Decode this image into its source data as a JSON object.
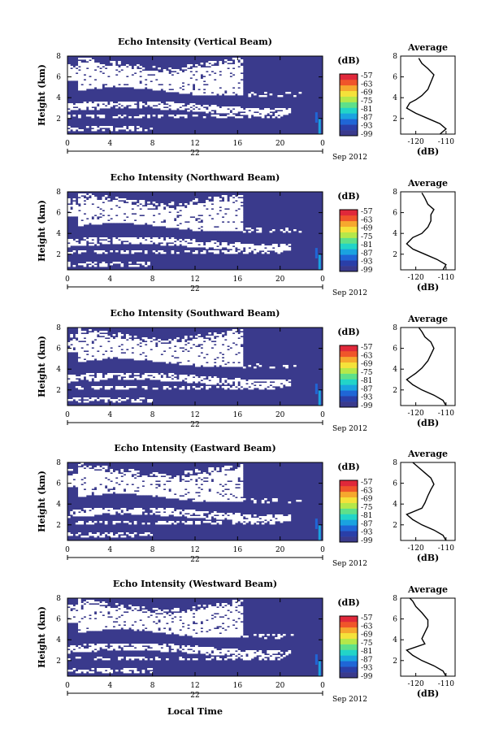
{
  "chart_data": {
    "type": "heatmap",
    "date_label": "Sep 2012",
    "day_label": "22",
    "xlabel_bottom": "Local Time",
    "x_ticks": [
      "0",
      "4",
      "8",
      "12",
      "16",
      "20",
      "0"
    ],
    "xlim_hours": [
      0,
      24
    ],
    "y_ticks": [
      "2",
      "4",
      "6",
      "8"
    ],
    "ylim_km": [
      0.5,
      8
    ],
    "colorbar_unit": "(dB)",
    "colorbar_ticks": [
      "-57",
      "-63",
      "-69",
      "-75",
      "-81",
      "-87",
      "-93",
      "-99"
    ],
    "colors": [
      "#3a3a8c",
      "#2a3fa8",
      "#1f66d6",
      "#1aa3e0",
      "#22d4c8",
      "#5ee08a",
      "#b5e84a",
      "#f5e23a",
      "#f6a82e",
      "#f0552a",
      "#e0283a"
    ],
    "avg_xlabel": "(dB)",
    "avg_title": "Average",
    "avg_ylim_km": [
      0.5,
      8
    ],
    "panels": [
      {
        "title": "Echo Intensity (Vertical Beam)",
        "ylabel": "Height (km)",
        "avg_ticks": [
          "-120",
          "-110"
        ],
        "avg_profile": [
          [
            -112,
            0.5
          ],
          [
            -110,
            1.0
          ],
          [
            -112,
            1.5
          ],
          [
            -116,
            2.0
          ],
          [
            -120,
            2.5
          ],
          [
            -123,
            3.0
          ],
          [
            -122,
            3.5
          ],
          [
            -120,
            3.8
          ],
          [
            -118,
            4.2
          ],
          [
            -116,
            4.8
          ],
          [
            -115,
            5.5
          ],
          [
            -114,
            6.2
          ],
          [
            -116,
            6.8
          ],
          [
            -118,
            7.3
          ],
          [
            -119,
            7.8
          ]
        ]
      },
      {
        "title": "Echo Intensity (Northward Beam)",
        "ylabel": "Height (km)",
        "avg_ticks": [
          "-120",
          "-110"
        ],
        "avg_profile": [
          [
            -111,
            0.5
          ],
          [
            -110,
            1.0
          ],
          [
            -113,
            1.5
          ],
          [
            -117,
            2.0
          ],
          [
            -121,
            2.5
          ],
          [
            -123,
            3.0
          ],
          [
            -121,
            3.6
          ],
          [
            -118,
            4.0
          ],
          [
            -116,
            4.6
          ],
          [
            -115,
            5.2
          ],
          [
            -115,
            5.8
          ],
          [
            -114,
            6.3
          ],
          [
            -116,
            6.8
          ],
          [
            -117,
            7.4
          ],
          [
            -118,
            7.9
          ]
        ]
      },
      {
        "title": "Echo Intensity (Southward Beam)",
        "ylabel": "Height (km)",
        "avg_ticks": [
          "-120",
          "-110"
        ],
        "avg_profile": [
          [
            -110,
            0.5
          ],
          [
            -111,
            1.0
          ],
          [
            -114,
            1.5
          ],
          [
            -118,
            2.0
          ],
          [
            -121,
            2.5
          ],
          [
            -123,
            3.0
          ],
          [
            -120,
            3.6
          ],
          [
            -118,
            4.1
          ],
          [
            -116,
            4.8
          ],
          [
            -115,
            5.4
          ],
          [
            -114,
            6.0
          ],
          [
            -115,
            6.6
          ],
          [
            -117,
            7.1
          ],
          [
            -118,
            7.6
          ],
          [
            -119,
            8.0
          ]
        ]
      },
      {
        "title": "Echo Intensity (Eastward Beam)",
        "ylabel": "Height (km)",
        "avg_ticks": [
          "-120",
          "-110"
        ],
        "avg_profile": [
          [
            -110,
            0.5
          ],
          [
            -111,
            1.0
          ],
          [
            -114,
            1.5
          ],
          [
            -118,
            2.0
          ],
          [
            -121,
            2.5
          ],
          [
            -123,
            3.0
          ],
          [
            -118,
            3.6
          ],
          [
            -117,
            4.1
          ],
          [
            -116,
            4.8
          ],
          [
            -115,
            5.4
          ],
          [
            -114,
            5.9
          ],
          [
            -115,
            6.5
          ],
          [
            -117,
            7.0
          ],
          [
            -119,
            7.5
          ],
          [
            -121,
            8.0
          ]
        ]
      },
      {
        "title": "Echo Intensity (Westward Beam)",
        "ylabel": "Height (km)",
        "avg_ticks": [
          "-120",
          "-110"
        ],
        "avg_profile": [
          [
            -110,
            0.5
          ],
          [
            -111,
            1.0
          ],
          [
            -114,
            1.5
          ],
          [
            -118,
            2.0
          ],
          [
            -121,
            2.5
          ],
          [
            -123,
            3.0
          ],
          [
            -117,
            3.6
          ],
          [
            -118,
            4.1
          ],
          [
            -117,
            4.7
          ],
          [
            -116,
            5.3
          ],
          [
            -116,
            5.9
          ],
          [
            -118,
            6.6
          ],
          [
            -120,
            7.2
          ],
          [
            -121,
            7.7
          ],
          [
            -122,
            8.0
          ]
        ]
      }
    ]
  }
}
